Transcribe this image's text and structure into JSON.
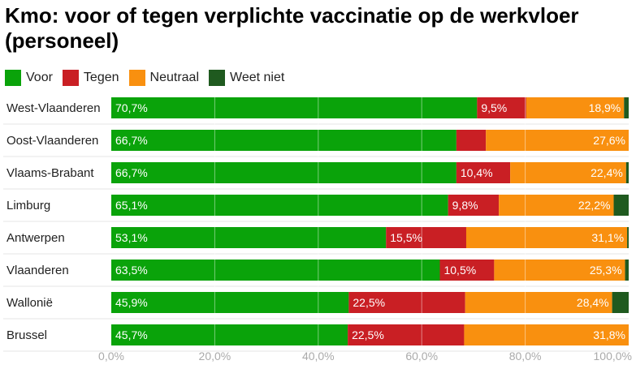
{
  "chart_data": {
    "type": "bar",
    "orientation": "horizontal",
    "stacked": true,
    "title": "Kmo: voor of tegen verplichte vaccinatie op de werkvloer (personeel)",
    "categories": [
      "West-Vlaanderen",
      "Oost-Vlaanderen",
      "Vlaams-Brabant",
      "Limburg",
      "Antwerpen",
      "Vlaanderen",
      "Wallonië",
      "Brussel"
    ],
    "series": [
      {
        "name": "Voor",
        "color": "#0aa30a",
        "values": [
          70.7,
          66.7,
          66.7,
          65.1,
          53.1,
          63.5,
          45.9,
          45.7
        ],
        "labels": [
          "70,7%",
          "66,7%",
          "66,7%",
          "65,1%",
          "53,1%",
          "63,5%",
          "45,9%",
          "45,7%"
        ]
      },
      {
        "name": "Tegen",
        "color": "#c91f24",
        "values": [
          9.5,
          5.7,
          10.4,
          9.8,
          15.5,
          10.5,
          22.5,
          22.5
        ],
        "labels": [
          "9,5%",
          "",
          "10,4%",
          "9,8%",
          "15,5%",
          "10,5%",
          "22,5%",
          "22,5%"
        ]
      },
      {
        "name": "Neutraal",
        "color": "#f9900f",
        "values": [
          18.9,
          27.6,
          22.4,
          22.2,
          31.1,
          25.3,
          28.4,
          31.8
        ],
        "labels": [
          "18,9%",
          "27,6%",
          "22,4%",
          "22,2%",
          "31,1%",
          "25,3%",
          "28,4%",
          "31,8%"
        ]
      },
      {
        "name": "Weet niet",
        "color": "#1f5a1f",
        "values": [
          0.9,
          0.0,
          0.5,
          2.9,
          0.3,
          0.7,
          3.2,
          0.0
        ],
        "labels": [
          "",
          "",
          "",
          "",
          "",
          "",
          "",
          ""
        ]
      }
    ],
    "xlim": [
      0,
      100
    ],
    "x_ticks": [
      "0,0%",
      "20,0%",
      "40,0%",
      "60,0%",
      "80,0%",
      "100,0%"
    ],
    "legend_position": "top-left",
    "grid": true
  }
}
